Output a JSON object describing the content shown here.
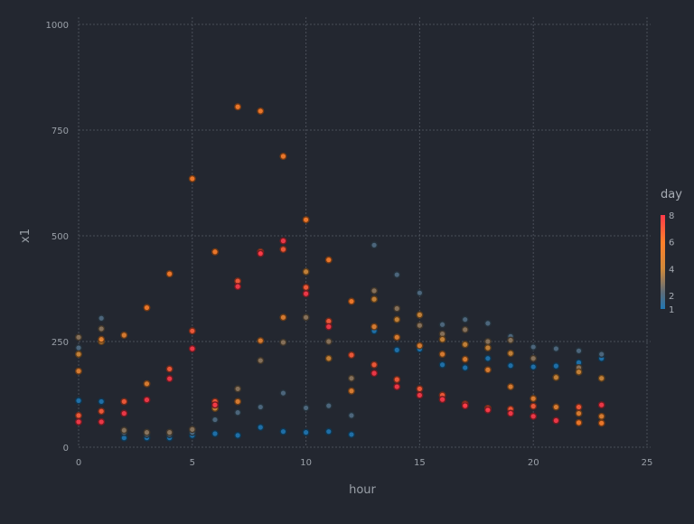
{
  "chart_data": {
    "type": "scatter",
    "xlabel": "hour",
    "ylabel": "x1",
    "xlim": [
      0,
      25
    ],
    "ylim": [
      0,
      1000
    ],
    "x_ticks": [
      0,
      5,
      10,
      15,
      20,
      25
    ],
    "y_ticks": [
      0,
      250,
      500,
      750,
      1000
    ],
    "x_tick_labels": [
      "0",
      "5",
      "10",
      "15",
      "20",
      "25"
    ],
    "y_tick_labels": [
      "0",
      "250",
      "500",
      "750",
      "1000"
    ],
    "grid": true,
    "color_variable": "day",
    "colorbar": {
      "title": "day",
      "range": [
        1,
        8
      ],
      "ticks": [
        1,
        2,
        4,
        6,
        8
      ],
      "tick_labels": [
        "1",
        "2",
        "4",
        "6",
        "8"
      ],
      "position": "right",
      "colors": [
        "#1f77b4",
        "#5b6b7a",
        "#d0893a",
        "#ff7f2a",
        "#ff3a4a"
      ]
    },
    "points": [
      {
        "x": 0,
        "y": 110,
        "day": 1
      },
      {
        "x": 0,
        "y": 235,
        "day": 2
      },
      {
        "x": 0,
        "y": 260,
        "day": 3
      },
      {
        "x": 0,
        "y": 220,
        "day": 4
      },
      {
        "x": 0,
        "y": 180,
        "day": 5
      },
      {
        "x": 0,
        "y": 75,
        "day": 7
      },
      {
        "x": 0,
        "y": 60,
        "day": 8
      },
      {
        "x": 1,
        "y": 108,
        "day": 1
      },
      {
        "x": 1,
        "y": 305,
        "day": 2
      },
      {
        "x": 1,
        "y": 280,
        "day": 3
      },
      {
        "x": 1,
        "y": 250,
        "day": 4
      },
      {
        "x": 1,
        "y": 255,
        "day": 5
      },
      {
        "x": 1,
        "y": 85,
        "day": 7
      },
      {
        "x": 1,
        "y": 60,
        "day": 8
      },
      {
        "x": 2,
        "y": 22,
        "day": 1
      },
      {
        "x": 2,
        "y": 35,
        "day": 2
      },
      {
        "x": 2,
        "y": 40,
        "day": 3
      },
      {
        "x": 2,
        "y": 265,
        "day": 5
      },
      {
        "x": 2,
        "y": 108,
        "day": 7
      },
      {
        "x": 2,
        "y": 80,
        "day": 8
      },
      {
        "x": 3,
        "y": 22,
        "day": 1
      },
      {
        "x": 3,
        "y": 30,
        "day": 2
      },
      {
        "x": 3,
        "y": 35,
        "day": 3
      },
      {
        "x": 3,
        "y": 150,
        "day": 5
      },
      {
        "x": 3,
        "y": 330,
        "day": 6
      },
      {
        "x": 3,
        "y": 112,
        "day": 8
      },
      {
        "x": 4,
        "y": 22,
        "day": 1
      },
      {
        "x": 4,
        "y": 30,
        "day": 2
      },
      {
        "x": 4,
        "y": 35,
        "day": 3
      },
      {
        "x": 4,
        "y": 410,
        "day": 6
      },
      {
        "x": 4,
        "y": 185,
        "day": 7
      },
      {
        "x": 4,
        "y": 162,
        "day": 8
      },
      {
        "x": 5,
        "y": 28,
        "day": 1
      },
      {
        "x": 5,
        "y": 35,
        "day": 2
      },
      {
        "x": 5,
        "y": 42,
        "day": 3
      },
      {
        "x": 5,
        "y": 635,
        "day": 6
      },
      {
        "x": 5,
        "y": 275,
        "day": 7
      },
      {
        "x": 5,
        "y": 233,
        "day": 8
      },
      {
        "x": 6,
        "y": 32,
        "day": 1
      },
      {
        "x": 6,
        "y": 65,
        "day": 2
      },
      {
        "x": 6,
        "y": 92,
        "day": 4
      },
      {
        "x": 6,
        "y": 462,
        "day": 6
      },
      {
        "x": 6,
        "y": 108,
        "day": 7
      },
      {
        "x": 6,
        "y": 100,
        "day": 8
      },
      {
        "x": 7,
        "y": 28,
        "day": 1
      },
      {
        "x": 7,
        "y": 82,
        "day": 2
      },
      {
        "x": 7,
        "y": 138,
        "day": 3
      },
      {
        "x": 7,
        "y": 108,
        "day": 5
      },
      {
        "x": 7,
        "y": 805,
        "day": 6
      },
      {
        "x": 7,
        "y": 393,
        "day": 7
      },
      {
        "x": 7,
        "y": 380,
        "day": 8
      },
      {
        "x": 8,
        "y": 47,
        "day": 1
      },
      {
        "x": 8,
        "y": 95,
        "day": 2
      },
      {
        "x": 8,
        "y": 205,
        "day": 3
      },
      {
        "x": 8,
        "y": 252,
        "day": 5
      },
      {
        "x": 8,
        "y": 795,
        "day": 6
      },
      {
        "x": 8,
        "y": 462,
        "day": 7
      },
      {
        "x": 8,
        "y": 458,
        "day": 8
      },
      {
        "x": 9,
        "y": 37,
        "day": 1
      },
      {
        "x": 9,
        "y": 128,
        "day": 2
      },
      {
        "x": 9,
        "y": 248,
        "day": 3
      },
      {
        "x": 9,
        "y": 307,
        "day": 5
      },
      {
        "x": 9,
        "y": 688,
        "day": 6
      },
      {
        "x": 9,
        "y": 488,
        "day": 8
      },
      {
        "x": 9,
        "y": 468,
        "day": 7
      },
      {
        "x": 10,
        "y": 35,
        "day": 1
      },
      {
        "x": 10,
        "y": 93,
        "day": 2
      },
      {
        "x": 10,
        "y": 307,
        "day": 3
      },
      {
        "x": 10,
        "y": 415,
        "day": 4
      },
      {
        "x": 10,
        "y": 538,
        "day": 6
      },
      {
        "x": 10,
        "y": 378,
        "day": 7
      },
      {
        "x": 10,
        "y": 363,
        "day": 8
      },
      {
        "x": 11,
        "y": 37,
        "day": 1
      },
      {
        "x": 11,
        "y": 98,
        "day": 2
      },
      {
        "x": 11,
        "y": 250,
        "day": 3
      },
      {
        "x": 11,
        "y": 210,
        "day": 4
      },
      {
        "x": 11,
        "y": 443,
        "day": 6
      },
      {
        "x": 11,
        "y": 298,
        "day": 7
      },
      {
        "x": 11,
        "y": 285,
        "day": 8
      },
      {
        "x": 12,
        "y": 30,
        "day": 1
      },
      {
        "x": 12,
        "y": 75,
        "day": 2
      },
      {
        "x": 12,
        "y": 163,
        "day": 3
      },
      {
        "x": 12,
        "y": 133,
        "day": 5
      },
      {
        "x": 12,
        "y": 345,
        "day": 6
      },
      {
        "x": 12,
        "y": 218,
        "day": 7
      },
      {
        "x": 13,
        "y": 275,
        "day": 1
      },
      {
        "x": 13,
        "y": 478,
        "day": 2
      },
      {
        "x": 13,
        "y": 370,
        "day": 3
      },
      {
        "x": 13,
        "y": 350,
        "day": 4
      },
      {
        "x": 13,
        "y": 285,
        "day": 5
      },
      {
        "x": 13,
        "y": 195,
        "day": 7
      },
      {
        "x": 13,
        "y": 175,
        "day": 8
      },
      {
        "x": 14,
        "y": 230,
        "day": 1
      },
      {
        "x": 14,
        "y": 408,
        "day": 2
      },
      {
        "x": 14,
        "y": 328,
        "day": 3
      },
      {
        "x": 14,
        "y": 302,
        "day": 4
      },
      {
        "x": 14,
        "y": 260,
        "day": 5
      },
      {
        "x": 14,
        "y": 160,
        "day": 7
      },
      {
        "x": 14,
        "y": 143,
        "day": 8
      },
      {
        "x": 15,
        "y": 232,
        "day": 1
      },
      {
        "x": 15,
        "y": 365,
        "day": 2
      },
      {
        "x": 15,
        "y": 288,
        "day": 3
      },
      {
        "x": 15,
        "y": 313,
        "day": 4
      },
      {
        "x": 15,
        "y": 240,
        "day": 5
      },
      {
        "x": 15,
        "y": 138,
        "day": 7
      },
      {
        "x": 15,
        "y": 123,
        "day": 8
      },
      {
        "x": 16,
        "y": 195,
        "day": 1
      },
      {
        "x": 16,
        "y": 290,
        "day": 2
      },
      {
        "x": 16,
        "y": 268,
        "day": 3
      },
      {
        "x": 16,
        "y": 255,
        "day": 4
      },
      {
        "x": 16,
        "y": 220,
        "day": 5
      },
      {
        "x": 16,
        "y": 123,
        "day": 7
      },
      {
        "x": 16,
        "y": 113,
        "day": 8
      },
      {
        "x": 17,
        "y": 188,
        "day": 1
      },
      {
        "x": 17,
        "y": 302,
        "day": 2
      },
      {
        "x": 17,
        "y": 278,
        "day": 3
      },
      {
        "x": 17,
        "y": 243,
        "day": 4
      },
      {
        "x": 17,
        "y": 208,
        "day": 5
      },
      {
        "x": 17,
        "y": 102,
        "day": 7
      },
      {
        "x": 17,
        "y": 98,
        "day": 8
      },
      {
        "x": 18,
        "y": 210,
        "day": 1
      },
      {
        "x": 18,
        "y": 293,
        "day": 2
      },
      {
        "x": 18,
        "y": 250,
        "day": 3
      },
      {
        "x": 18,
        "y": 235,
        "day": 4
      },
      {
        "x": 18,
        "y": 183,
        "day": 5
      },
      {
        "x": 18,
        "y": 92,
        "day": 7
      },
      {
        "x": 18,
        "y": 88,
        "day": 8
      },
      {
        "x": 19,
        "y": 193,
        "day": 1
      },
      {
        "x": 19,
        "y": 262,
        "day": 2
      },
      {
        "x": 19,
        "y": 253,
        "day": 3
      },
      {
        "x": 19,
        "y": 222,
        "day": 4
      },
      {
        "x": 19,
        "y": 143,
        "day": 5
      },
      {
        "x": 19,
        "y": 90,
        "day": 7
      },
      {
        "x": 19,
        "y": 80,
        "day": 8
      },
      {
        "x": 20,
        "y": 190,
        "day": 1
      },
      {
        "x": 20,
        "y": 237,
        "day": 2
      },
      {
        "x": 20,
        "y": 210,
        "day": 3
      },
      {
        "x": 20,
        "y": 115,
        "day": 5
      },
      {
        "x": 20,
        "y": 97,
        "day": 7
      },
      {
        "x": 20,
        "y": 73,
        "day": 8
      },
      {
        "x": 21,
        "y": 192,
        "day": 1
      },
      {
        "x": 21,
        "y": 233,
        "day": 2
      },
      {
        "x": 21,
        "y": 165,
        "day": 4
      },
      {
        "x": 21,
        "y": 95,
        "day": 5
      },
      {
        "x": 21,
        "y": 63,
        "day": 8
      },
      {
        "x": 22,
        "y": 200,
        "day": 1
      },
      {
        "x": 22,
        "y": 228,
        "day": 2
      },
      {
        "x": 22,
        "y": 188,
        "day": 3
      },
      {
        "x": 22,
        "y": 178,
        "day": 4
      },
      {
        "x": 22,
        "y": 80,
        "day": 5
      },
      {
        "x": 22,
        "y": 95,
        "day": 7
      },
      {
        "x": 22,
        "y": 58,
        "day": 6
      },
      {
        "x": 23,
        "y": 210,
        "day": 1
      },
      {
        "x": 23,
        "y": 220,
        "day": 2
      },
      {
        "x": 23,
        "y": 163,
        "day": 4
      },
      {
        "x": 23,
        "y": 73,
        "day": 5
      },
      {
        "x": 23,
        "y": 100,
        "day": 8
      },
      {
        "x": 23,
        "y": 57,
        "day": 6
      }
    ]
  }
}
